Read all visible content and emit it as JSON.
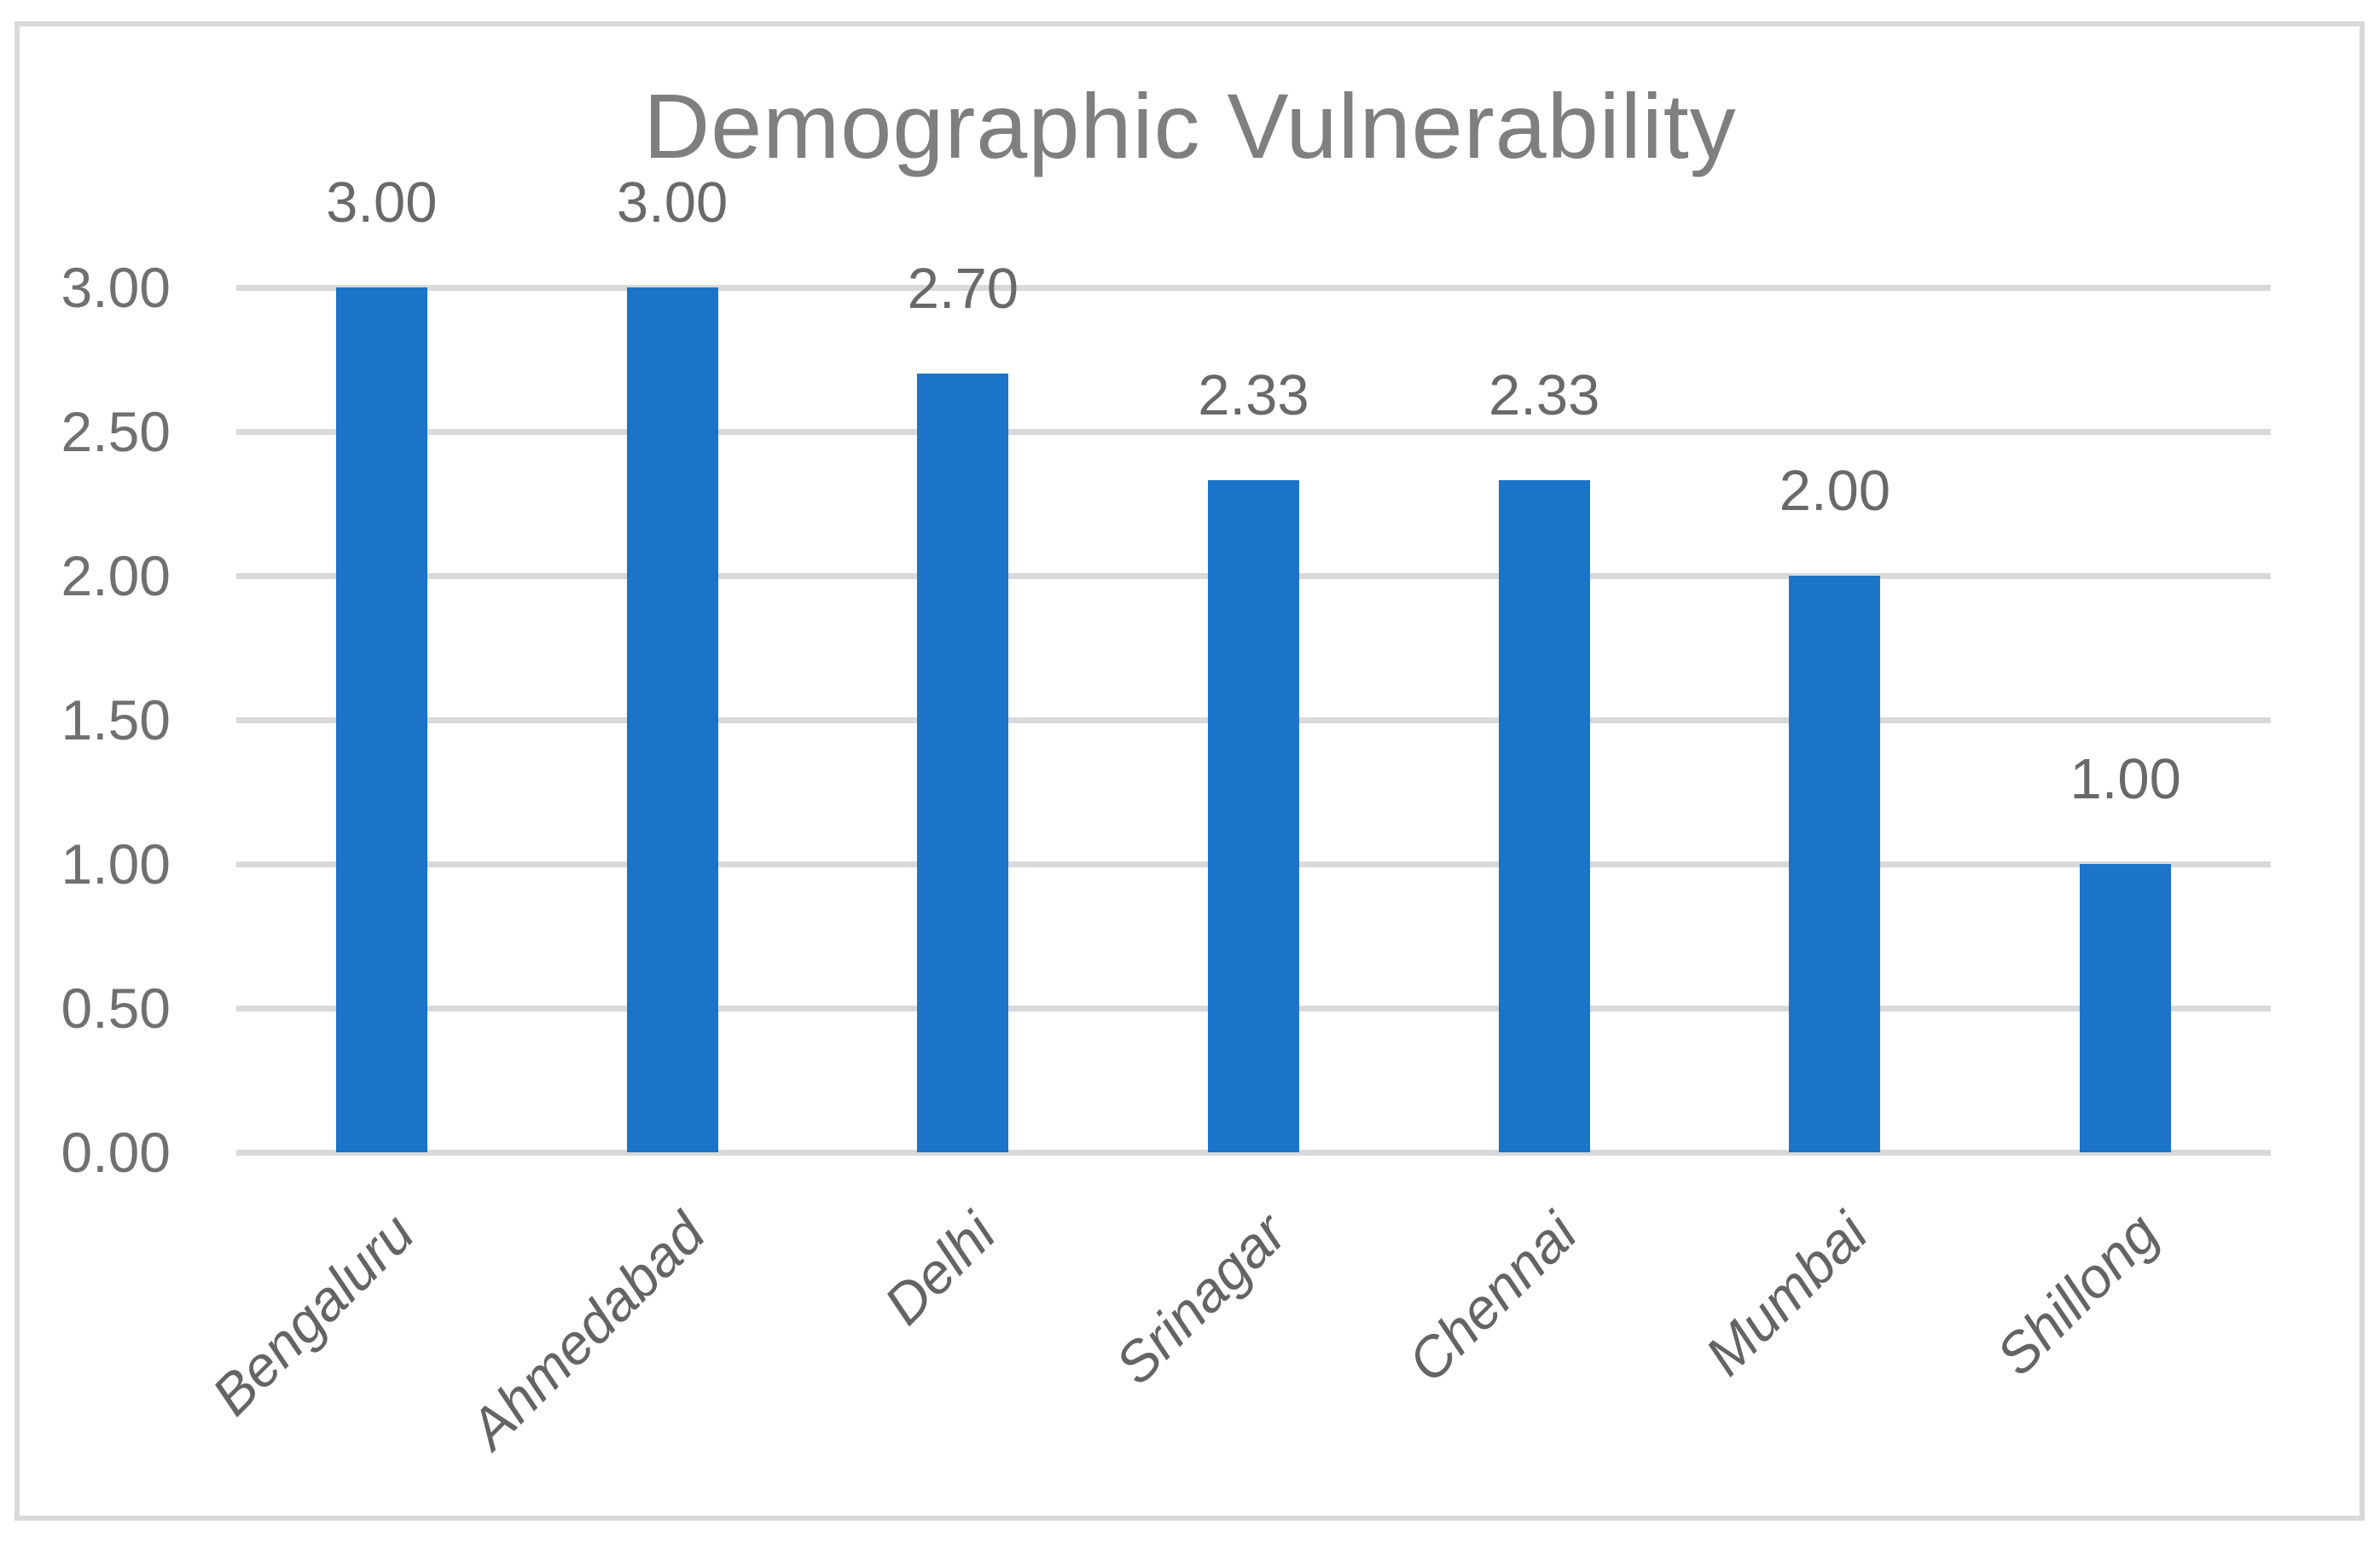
{
  "chart": {
    "title": "Demographic Vulnerability"
  },
  "chart_data": {
    "type": "bar",
    "title": "Demographic Vulnerability",
    "categories": [
      "Bengaluru",
      "Ahmedabad",
      "Delhi",
      "Srinagar",
      "Chennai",
      "Mumbai",
      "Shillong"
    ],
    "values": [
      3.0,
      3.0,
      2.7,
      2.33,
      2.33,
      2.0,
      1.0
    ],
    "data_labels": [
      "3.00",
      "3.00",
      "2.70",
      "2.33",
      "2.33",
      "2.00",
      "1.00"
    ],
    "xlabel": "",
    "ylabel": "",
    "ylim": [
      0,
      3
    ],
    "ytick_step": 0.5,
    "yticks": [
      "0.00",
      "0.50",
      "1.00",
      "1.50",
      "2.00",
      "2.50",
      "3.00"
    ],
    "grid": true,
    "legend_position": "none",
    "category_label_rotation_deg": -45,
    "colors": {
      "bar": "#1B74C8",
      "gridline": "#D9D9D9",
      "chart_border": "#D9D9D9",
      "title_text": "#7F7F7F",
      "axis_tick_text": "#707070",
      "category_text": "#646464",
      "data_label_text": "#696969",
      "background": "#FFFFFF"
    }
  }
}
